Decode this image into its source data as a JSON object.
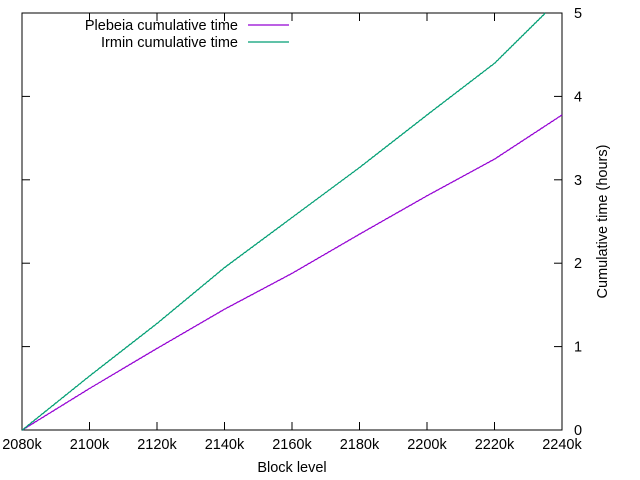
{
  "chart_data": {
    "type": "line",
    "title": "",
    "xlabel": "Block level",
    "ylabel": "Cumulative time (hours)",
    "xlim": [
      2080,
      2240
    ],
    "ylim": [
      0,
      5
    ],
    "x_unit_suffix": "k",
    "x_ticks": [
      "2080k",
      "2100k",
      "2120k",
      "2140k",
      "2160k",
      "2180k",
      "2200k",
      "2220k",
      "2240k"
    ],
    "y_ticks": [
      "0",
      "1",
      "2",
      "3",
      "4",
      "5"
    ],
    "y_axis_side": "right",
    "legend_position": "top-left",
    "grid": false,
    "series": [
      {
        "name": "Plebeia cumulative time",
        "color": "#9400d3",
        "points": [
          [
            2080,
            0
          ],
          [
            2100,
            0.5
          ],
          [
            2120,
            0.98
          ],
          [
            2140,
            1.45
          ],
          [
            2160,
            1.88
          ],
          [
            2180,
            2.35
          ],
          [
            2200,
            2.81
          ],
          [
            2220,
            3.25
          ],
          [
            2240,
            3.78
          ]
        ]
      },
      {
        "name": "Irmin cumulative time",
        "color": "#009e73",
        "points": [
          [
            2080,
            0
          ],
          [
            2100,
            0.65
          ],
          [
            2120,
            1.28
          ],
          [
            2140,
            1.95
          ],
          [
            2160,
            2.55
          ],
          [
            2180,
            3.15
          ],
          [
            2200,
            3.78
          ],
          [
            2220,
            4.4
          ],
          [
            2235,
            5.0
          ]
        ]
      }
    ]
  }
}
